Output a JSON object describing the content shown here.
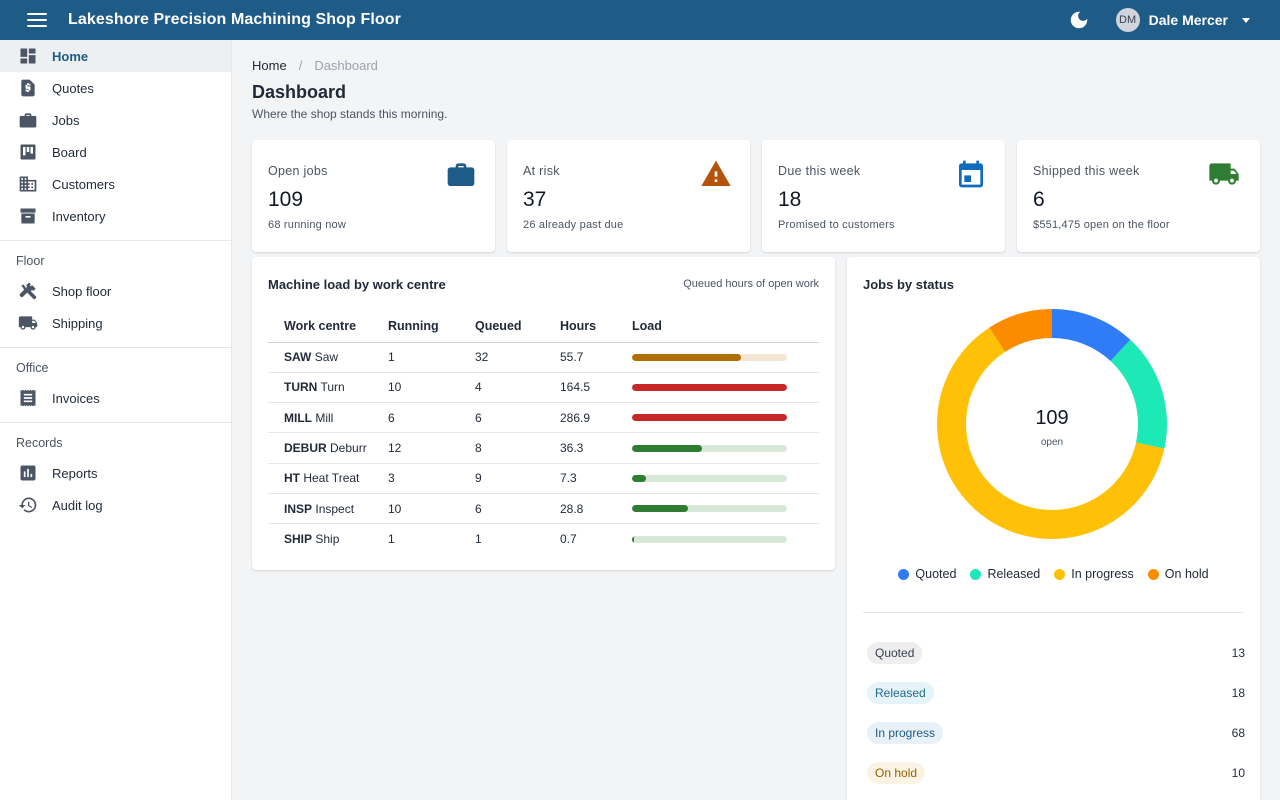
{
  "header": {
    "app_title": "Lakeshore Precision Machining Shop Floor",
    "user_initials": "DM",
    "user_name": "Dale Mercer"
  },
  "sidebar": {
    "main_items": [
      {
        "label": "Home",
        "icon": "dashboard-icon",
        "active": true
      },
      {
        "label": "Quotes",
        "icon": "quote-document-icon"
      },
      {
        "label": "Jobs",
        "icon": "briefcase-icon"
      },
      {
        "label": "Board",
        "icon": "kanban-board-icon"
      },
      {
        "label": "Customers",
        "icon": "building-icon"
      },
      {
        "label": "Inventory",
        "icon": "archive-box-icon"
      }
    ],
    "groups": [
      {
        "title": "Floor",
        "items": [
          {
            "label": "Shop floor",
            "icon": "tools-icon"
          },
          {
            "label": "Shipping",
            "icon": "truck-icon"
          }
        ]
      },
      {
        "title": "Office",
        "items": [
          {
            "label": "Invoices",
            "icon": "receipt-icon"
          }
        ]
      },
      {
        "title": "Records",
        "items": [
          {
            "label": "Reports",
            "icon": "bar-chart-icon"
          },
          {
            "label": "Audit log",
            "icon": "history-icon"
          }
        ]
      }
    ]
  },
  "breadcrumb": {
    "home": "Home",
    "separator": "/",
    "current": "Dashboard"
  },
  "page": {
    "title": "Dashboard",
    "subtitle": "Where the shop stands this morning."
  },
  "kpis": [
    {
      "label": "Open jobs",
      "value": "109",
      "note": "68 running now",
      "icon": "briefcase-icon",
      "color": "#1e5b87"
    },
    {
      "label": "At risk",
      "value": "37",
      "note": "26 already past due",
      "icon": "warning-icon",
      "color": "#b45309"
    },
    {
      "label": "Due this week",
      "value": "18",
      "note": "Promised to customers",
      "icon": "calendar-icon",
      "color": "#0f6cbd"
    },
    {
      "label": "Shipped this week",
      "value": "6",
      "note": "$551,475 open on the floor",
      "icon": "truck-icon",
      "color": "#2e7d32"
    }
  ],
  "machine_load": {
    "title": "Machine load by work centre",
    "hint": "Queued hours of open work",
    "columns": [
      "Work centre",
      "Running",
      "Queued",
      "Hours",
      "Load"
    ],
    "rows": [
      {
        "code": "SAW",
        "name": "Saw",
        "running": "1",
        "queued": "32",
        "hours": "55.7",
        "load": 0.7,
        "color": "#b06d00",
        "track": "#f3e6d3"
      },
      {
        "code": "TURN",
        "name": "Turn",
        "running": "10",
        "queued": "4",
        "hours": "164.5",
        "load": 1.0,
        "color": "#c62828",
        "track": "#f5d5d5"
      },
      {
        "code": "MILL",
        "name": "Mill",
        "running": "6",
        "queued": "6",
        "hours": "286.9",
        "load": 1.0,
        "color": "#c62828",
        "track": "#f5d5d5"
      },
      {
        "code": "DEBUR",
        "name": "Deburr",
        "running": "12",
        "queued": "8",
        "hours": "36.3",
        "load": 0.45,
        "color": "#2e7d32",
        "track": "#d7e8d8"
      },
      {
        "code": "HT",
        "name": "Heat Treat",
        "running": "3",
        "queued": "9",
        "hours": "7.3",
        "load": 0.09,
        "color": "#2e7d32",
        "track": "#d7e8d8"
      },
      {
        "code": "INSP",
        "name": "Inspect",
        "running": "10",
        "queued": "6",
        "hours": "28.8",
        "load": 0.36,
        "color": "#2e7d32",
        "track": "#d7e8d8"
      },
      {
        "code": "SHIP",
        "name": "Ship",
        "running": "1",
        "queued": "1",
        "hours": "0.7",
        "load": 0.01,
        "color": "#2e7d32",
        "track": "#d7e8d8"
      }
    ]
  },
  "status": {
    "title": "Jobs by status",
    "total": "109",
    "total_label": "open",
    "chart_data": {
      "type": "pie",
      "categories": [
        "Quoted",
        "Released",
        "In progress",
        "On hold"
      ],
      "values": [
        13,
        18,
        68,
        10
      ],
      "colors": [
        "#2f7cf6",
        "#1de9b6",
        "#ffc107",
        "#fb8c00"
      ]
    },
    "rows": [
      {
        "label": "Quoted",
        "count": "13",
        "pill_bg": "#eeeeee",
        "pill_fg": "#374151"
      },
      {
        "label": "Released",
        "count": "18",
        "pill_bg": "#e6f3f8",
        "pill_fg": "#1e6b8f"
      },
      {
        "label": "In progress",
        "count": "68",
        "pill_bg": "#e9f1f8",
        "pill_fg": "#1e5b87"
      },
      {
        "label": "On hold",
        "count": "10",
        "pill_bg": "#fbf3e4",
        "pill_fg": "#9a6100"
      }
    ]
  }
}
